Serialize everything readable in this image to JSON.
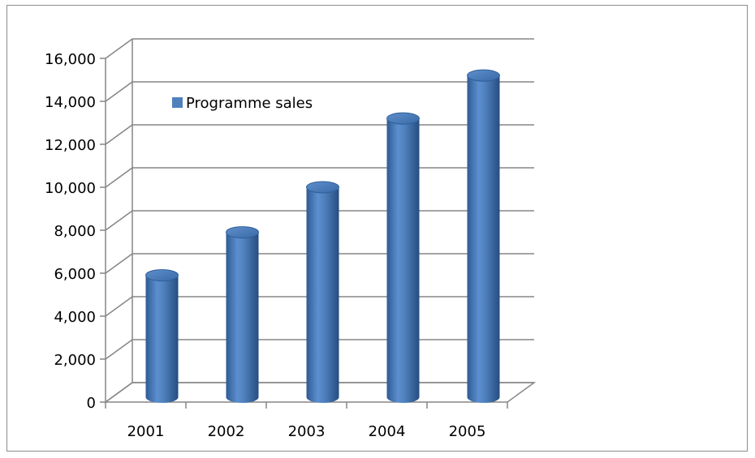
{
  "chart_data": {
    "type": "bar",
    "style": "3d-cylinder",
    "categories": [
      "2001",
      "2002",
      "2003",
      "2004",
      "2005"
    ],
    "series": [
      {
        "name": "Programme sales",
        "values": [
          5600,
          7600,
          9700,
          12900,
          14900
        ]
      }
    ],
    "ylim": [
      0,
      16000
    ],
    "yticks": [
      "0",
      "2,000",
      "4,000",
      "6,000",
      "8,000",
      "10,000",
      "12,000",
      "14,000",
      "16,000"
    ],
    "grid": true,
    "legend_position": "top-left",
    "title": "",
    "xlabel": "",
    "ylabel": "",
    "colors": {
      "bar": "#4f81bd",
      "grid": "#868686",
      "text": "#000000"
    }
  }
}
